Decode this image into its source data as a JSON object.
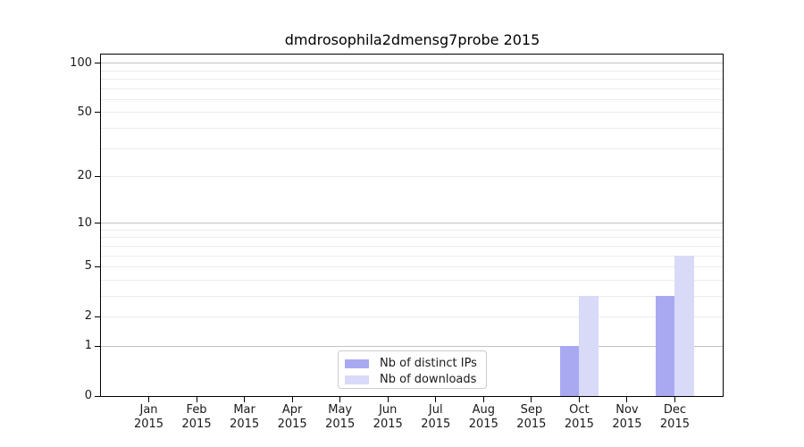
{
  "figure": {
    "title": "dmdrosophila2dmensg7probe 2015"
  },
  "colors": {
    "distinct_ips": "#a9a9f2",
    "downloads": "#d9d9f8",
    "grid_major": "#c3c3c3",
    "grid_minor": "#ececec",
    "axis": "#000000",
    "text": "#1a1a1a"
  },
  "legend": {
    "items": [
      {
        "key": "distinct_ips",
        "label": "Nb of distinct IPs"
      },
      {
        "key": "downloads",
        "label": "Nb of downloads"
      }
    ]
  },
  "chart_data": {
    "type": "bar",
    "title": "dmdrosophila2dmensg7probe 2015",
    "categories": [
      {
        "month": "Jan",
        "year": "2015"
      },
      {
        "month": "Feb",
        "year": "2015"
      },
      {
        "month": "Mar",
        "year": "2015"
      },
      {
        "month": "Apr",
        "year": "2015"
      },
      {
        "month": "May",
        "year": "2015"
      },
      {
        "month": "Jun",
        "year": "2015"
      },
      {
        "month": "Jul",
        "year": "2015"
      },
      {
        "month": "Aug",
        "year": "2015"
      },
      {
        "month": "Sep",
        "year": "2015"
      },
      {
        "month": "Oct",
        "year": "2015"
      },
      {
        "month": "Nov",
        "year": "2015"
      },
      {
        "month": "Dec",
        "year": "2015"
      }
    ],
    "series": [
      {
        "name": "Nb of distinct IPs",
        "key": "distinct_ips",
        "values": [
          0,
          0,
          0,
          0,
          0,
          0,
          0,
          0,
          0,
          1,
          0,
          3
        ]
      },
      {
        "name": "Nb of downloads",
        "key": "downloads",
        "values": [
          0,
          0,
          0,
          0,
          0,
          0,
          0,
          0,
          0,
          3,
          0,
          6
        ]
      }
    ],
    "y_scale": "log1p",
    "y_ticks": [
      0,
      1,
      2,
      5,
      10,
      20,
      50,
      100
    ],
    "y_major_gridlines": [
      1,
      10,
      100
    ],
    "y_minor_gridlines": [
      2,
      3,
      4,
      5,
      6,
      7,
      8,
      9,
      20,
      30,
      40,
      50,
      60,
      70,
      80,
      90
    ],
    "ylim": [
      0,
      113
    ],
    "grid": "horizontal",
    "legend_position": "lower-center-inside"
  }
}
